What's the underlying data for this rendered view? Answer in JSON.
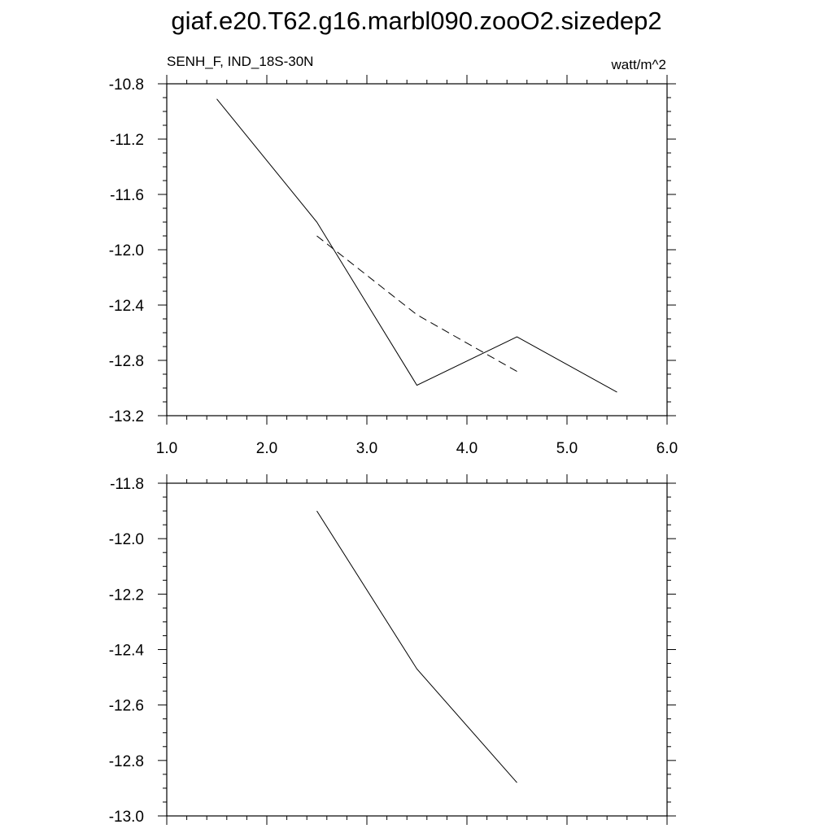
{
  "title": "giaf.e20.T62.g16.marbl090.zooO2.sizedep2",
  "chart_data": [
    {
      "type": "line",
      "left_label": "SENH_F, IND_18S-30N",
      "right_label": "watt/m^2",
      "xlim": [
        1.0,
        6.0
      ],
      "ylim": [
        -13.2,
        -10.8
      ],
      "x_ticks": [
        "1.0",
        "2.0",
        "3.0",
        "4.0",
        "5.0",
        "6.0"
      ],
      "y_ticks": [
        "-10.8",
        "-11.2",
        "-11.6",
        "-12.0",
        "-12.4",
        "-12.8",
        "-13.2"
      ],
      "series": [
        {
          "style": "solid",
          "x": [
            1.5,
            2.5,
            3.5,
            4.5,
            5.5
          ],
          "y": [
            -10.91,
            -11.8,
            -12.98,
            -12.63,
            -13.03
          ]
        },
        {
          "style": "dashed",
          "x": [
            2.5,
            3.5,
            4.5
          ],
          "y": [
            -11.9,
            -12.47,
            -12.88
          ]
        }
      ]
    },
    {
      "type": "line",
      "xlim": [
        1.0,
        6.0
      ],
      "ylim": [
        -13.0,
        -11.8
      ],
      "y_ticks": [
        "-11.8",
        "-12.0",
        "-12.2",
        "-12.4",
        "-12.6",
        "-12.8",
        "-13.0"
      ],
      "series": [
        {
          "style": "solid",
          "x": [
            2.5,
            3.5,
            4.5
          ],
          "y": [
            -11.9,
            -12.47,
            -12.88
          ]
        }
      ]
    }
  ]
}
